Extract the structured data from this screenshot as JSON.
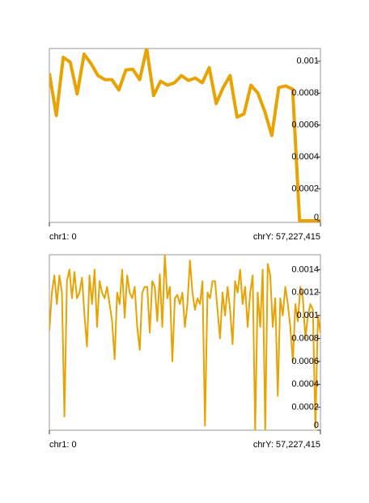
{
  "chart_data": [
    {
      "type": "line",
      "color": "#e8a202",
      "line_width": 4,
      "x_labels": [
        "chr1: 0",
        "chrY: 57,227,415"
      ],
      "ylim": [
        -1e-05,
        0.00108
      ],
      "yticks": [
        0,
        0.0002,
        0.0004,
        0.0006,
        0.0008,
        0.001
      ],
      "values": [
        0.000925,
        0.00066,
        0.001025,
        0.000995,
        0.000795,
        0.001045,
        0.000985,
        0.00091,
        0.000885,
        0.000885,
        0.00082,
        0.000945,
        0.00095,
        0.000885,
        0.00108,
        0.000785,
        0.000875,
        0.00085,
        0.000865,
        0.00091,
        0.00088,
        0.000895,
        0.000865,
        0.00096,
        0.000735,
        0.000835,
        0.00091,
        0.00065,
        0.00067,
        0.00085,
        0.0008,
        0.000685,
        0.000535,
        0.000835,
        0.000845,
        0.000825,
        0,
        0,
        0,
        0
      ]
    },
    {
      "type": "line",
      "color": "#e8a202",
      "line_width": 2,
      "x_labels": [
        "chr1: 0",
        "chrY: 57,227,415"
      ],
      "ylim": [
        0,
        0.00153
      ],
      "yticks": [
        0,
        0.0002,
        0.0004,
        0.0006,
        0.0008,
        0.001,
        0.0012,
        0.0014
      ],
      "values": [
        0.00087,
        0.0012,
        0.00135,
        0.0011,
        0.00135,
        0.0012,
        0.00012,
        0.0013,
        0.0014,
        0.00115,
        0.00138,
        0.00115,
        0.0012,
        0.00133,
        0.001,
        0.00073,
        0.00135,
        0.0011,
        0.0014,
        0.0009,
        0.0013,
        0.0012,
        0.00115,
        0.00125,
        0.0011,
        0.00095,
        0.00062,
        0.0012,
        0.0011,
        0.0014,
        0.00098,
        0.00135,
        0.0012,
        0.00115,
        0.00125,
        0.0009,
        0.0007,
        0.0012,
        0.00125,
        0.00125,
        0.00085,
        0.0013,
        0.00125,
        0.00095,
        0.00136,
        0.0009,
        0.00153,
        0.00115,
        0.00125,
        0.0006,
        0.00115,
        0.00118,
        0.0011,
        0.0012,
        0.0009,
        0.0011,
        0.00148,
        0.0012,
        0.00105,
        0.00115,
        0.0011,
        0.0013,
        4e-05,
        0.0012,
        0.00115,
        0.0013,
        0.0013,
        0.00105,
        0.0008,
        0.0012,
        0.001,
        0.00125,
        0.00105,
        0.00075,
        0.0013,
        0.0012,
        0.0014,
        0.0011,
        0.00125,
        0.0009,
        0.0012,
        0.00135,
        0,
        0.0012,
        0.0009,
        0.0014,
        0,
        0.00145,
        0.00135,
        0.0009,
        0.00115,
        0.0003,
        0.00115,
        0.001,
        0.00125,
        0.0011,
        0.0009,
        0.0006,
        0.0011,
        0.00095,
        0.00125,
        0.00115,
        0.0008,
        0.001,
        0.0011,
        0.00105,
        2e-05,
        0.001,
        0.00085
      ]
    }
  ]
}
